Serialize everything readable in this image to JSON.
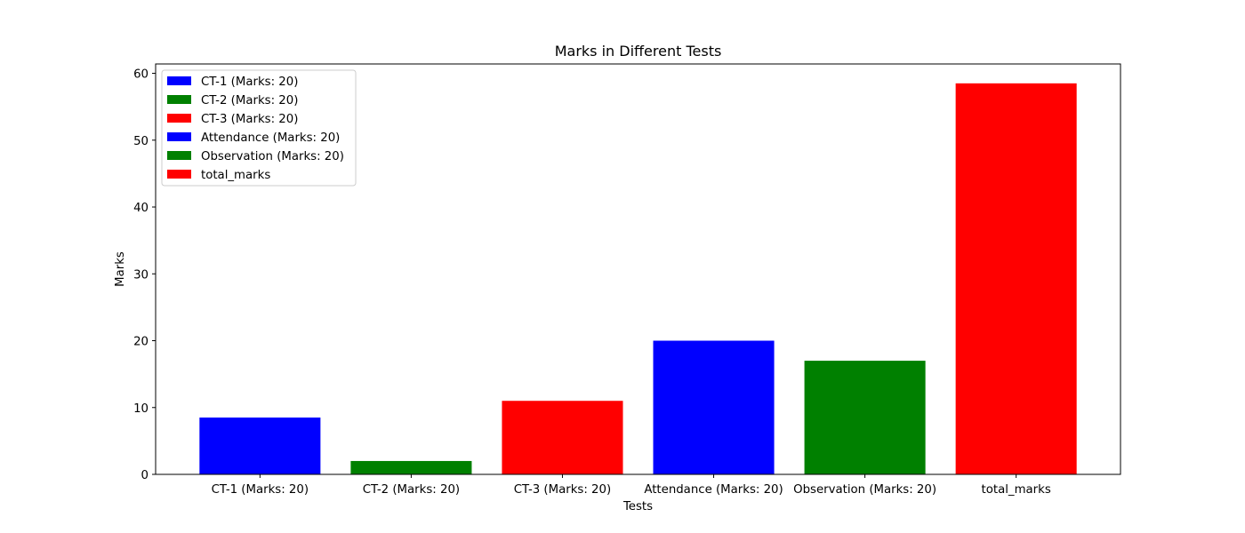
{
  "chart_data": {
    "type": "bar",
    "title": "Marks in Different Tests",
    "xlabel": "Tests",
    "ylabel": "Marks",
    "categories": [
      "CT-1 (Marks: 20)",
      "CT-2 (Marks: 20)",
      "CT-3 (Marks: 20)",
      "Attendance (Marks: 20)",
      "Observation (Marks: 20)",
      "total_marks"
    ],
    "values": [
      8.5,
      2,
      11,
      20,
      17,
      58.5
    ],
    "colors": [
      "#0000ff",
      "#008000",
      "#ff0000",
      "#0000ff",
      "#008000",
      "#ff0000"
    ],
    "ylim": [
      0,
      61.4
    ],
    "yticks": [
      0,
      10,
      20,
      30,
      40,
      50,
      60
    ],
    "grid": false,
    "legend": {
      "placement": "upper left",
      "entries": [
        {
          "label": "CT-1 (Marks: 20)",
          "color": "#0000ff"
        },
        {
          "label": "CT-2 (Marks: 20)",
          "color": "#008000"
        },
        {
          "label": "CT-3 (Marks: 20)",
          "color": "#ff0000"
        },
        {
          "label": "Attendance (Marks: 20)",
          "color": "#0000ff"
        },
        {
          "label": "Observation (Marks: 20)",
          "color": "#008000"
        },
        {
          "label": "total_marks",
          "color": "#ff0000"
        }
      ]
    }
  }
}
